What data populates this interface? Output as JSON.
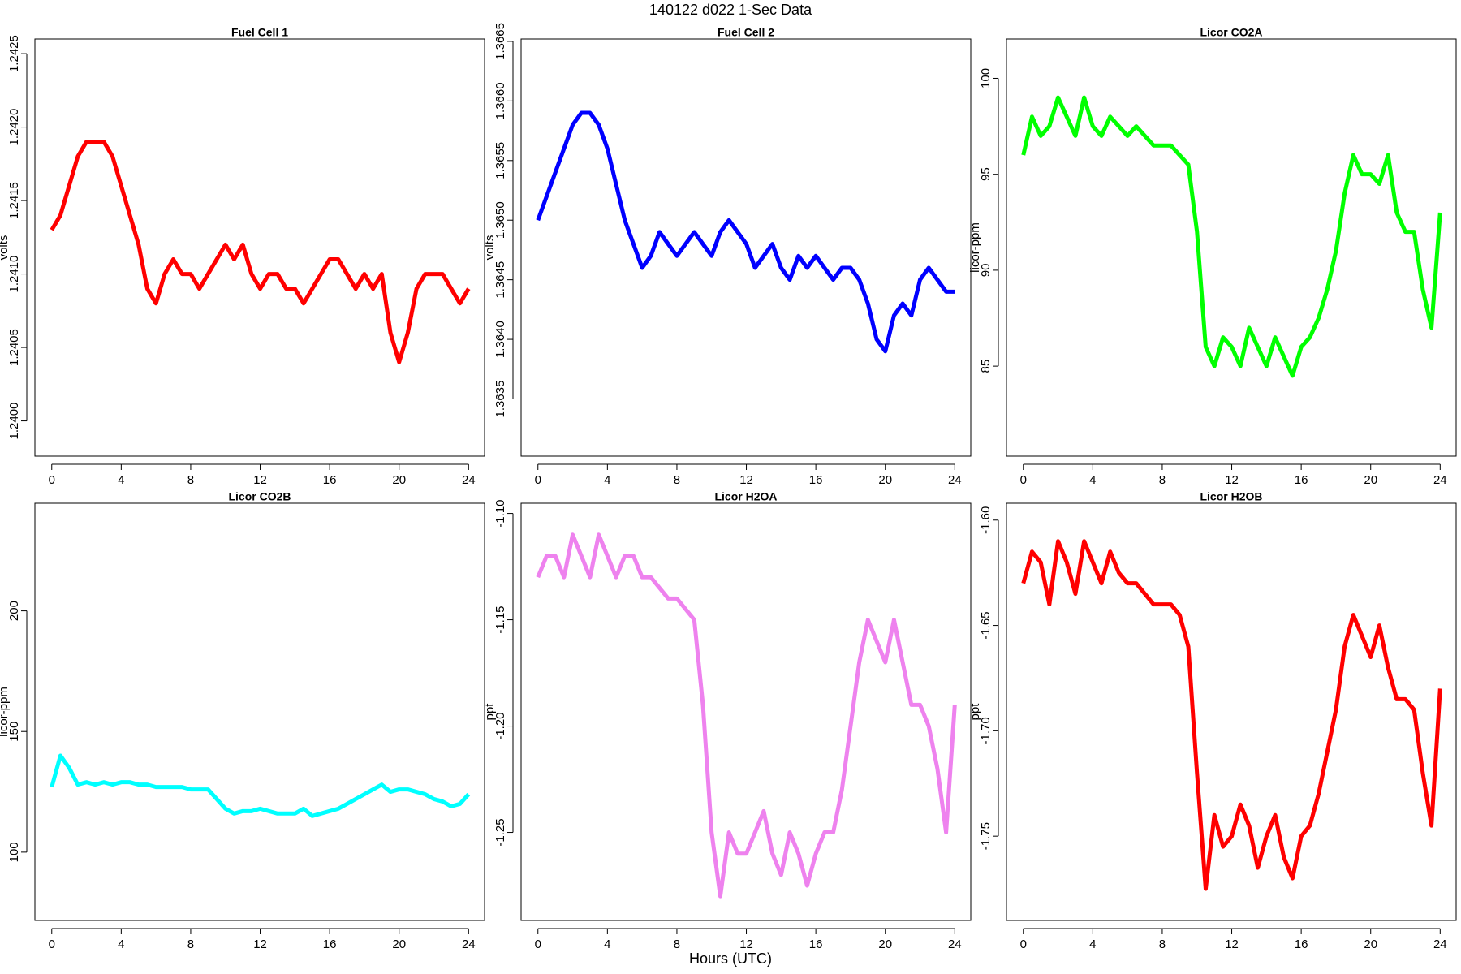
{
  "title": "140122   d022   1-Sec Data",
  "xlabel": "Hours (UTC)",
  "chart_data": [
    {
      "type": "line",
      "title": "Fuel Cell 1",
      "ylabel": "volts",
      "color": "#ff0000",
      "x": [
        0,
        0.5,
        1,
        1.5,
        2,
        2.5,
        3,
        3.5,
        4,
        4.5,
        5,
        5.5,
        6,
        6.5,
        7,
        7.5,
        8,
        8.5,
        9,
        9.5,
        10,
        10.5,
        11,
        11.5,
        12,
        12.5,
        13,
        13.5,
        14,
        14.5,
        15,
        15.5,
        16,
        16.5,
        17,
        17.5,
        18,
        18.5,
        19,
        19.5,
        20,
        20.5,
        21,
        21.5,
        22,
        22.5,
        23,
        23.5,
        24
      ],
      "values": [
        1.2413,
        1.2414,
        1.2416,
        1.2418,
        1.2419,
        1.2419,
        1.2419,
        1.2418,
        1.2416,
        1.2414,
        1.2412,
        1.2409,
        1.2408,
        1.241,
        1.2411,
        1.241,
        1.241,
        1.2409,
        1.241,
        1.2411,
        1.2412,
        1.2411,
        1.2412,
        1.241,
        1.2409,
        1.241,
        1.241,
        1.2409,
        1.2409,
        1.2408,
        1.2409,
        1.241,
        1.2411,
        1.2411,
        1.241,
        1.2409,
        1.241,
        1.2409,
        1.241,
        1.2406,
        1.2404,
        1.2406,
        1.2409,
        1.241,
        1.241,
        1.241,
        1.2409,
        1.2408,
        1.2409
      ],
      "xlim": [
        -0.97,
        24.92
      ],
      "xticks": [
        0,
        4,
        8,
        12,
        16,
        20,
        24
      ],
      "ylim": [
        1.23976,
        1.2426
      ],
      "yticks": [
        {
          "value": 1.24,
          "label": "1.2400"
        },
        1.2405,
        {
          "value": 1.241,
          "label": "1.2410"
        },
        1.2415,
        {
          "value": 1.242,
          "label": "1.2420"
        },
        1.2425
      ]
    },
    {
      "type": "line",
      "title": "Fuel Cell 2",
      "ylabel": "volts",
      "color": "#0000ff",
      "x": [
        0,
        0.5,
        1,
        1.5,
        2,
        2.5,
        3,
        3.5,
        4,
        4.5,
        5,
        5.5,
        6,
        6.5,
        7,
        7.5,
        8,
        8.5,
        9,
        9.5,
        10,
        10.5,
        11,
        11.5,
        12,
        12.5,
        13,
        13.5,
        14,
        14.5,
        15,
        15.5,
        16,
        16.5,
        17,
        17.5,
        18,
        18.5,
        19,
        19.5,
        20,
        20.5,
        21,
        21.5,
        22,
        22.5,
        23,
        23.5,
        24
      ],
      "values": [
        1.365,
        1.3652,
        1.3654,
        1.3656,
        1.3658,
        1.3659,
        1.3659,
        1.3658,
        1.3656,
        1.3653,
        1.365,
        1.3648,
        1.3646,
        1.3647,
        1.3649,
        1.3648,
        1.3647,
        1.3648,
        1.3649,
        1.3648,
        1.3647,
        1.3649,
        1.365,
        1.3649,
        1.3648,
        1.3646,
        1.3647,
        1.3648,
        1.3646,
        1.3645,
        1.3647,
        1.3646,
        1.3647,
        1.3646,
        1.3645,
        1.3646,
        1.3646,
        1.3645,
        1.3643,
        1.364,
        1.3639,
        1.3642,
        1.3643,
        1.3642,
        1.3645,
        1.3646,
        1.3645,
        1.3644,
        1.3644
      ],
      "xlim": [
        -0.97,
        24.92
      ],
      "xticks": [
        0,
        4,
        8,
        12,
        16,
        20,
        24
      ],
      "ylim": [
        1.36302,
        1.36652
      ],
      "yticks": [
        1.3635,
        {
          "value": 1.364,
          "label": "1.3640"
        },
        1.3645,
        {
          "value": 1.365,
          "label": "1.3650"
        },
        1.3655,
        {
          "value": 1.366,
          "label": "1.3660"
        },
        1.3665
      ]
    },
    {
      "type": "line",
      "title": "Licor CO2A",
      "ylabel": "licor-ppm",
      "color": "#00ff00",
      "x": [
        0,
        0.5,
        1,
        1.5,
        2,
        2.5,
        3,
        3.5,
        4,
        4.5,
        5,
        5.5,
        6,
        6.5,
        7,
        7.5,
        8,
        8.5,
        9,
        9.5,
        10,
        10.5,
        11,
        11.5,
        12,
        12.5,
        13,
        13.5,
        14,
        14.5,
        15,
        15.5,
        16,
        16.5,
        17,
        17.5,
        18,
        18.5,
        19,
        19.5,
        20,
        20.5,
        21,
        21.5,
        22,
        22.5,
        23,
        23.5,
        24
      ],
      "values": [
        96,
        98,
        97,
        97.5,
        99,
        98,
        97,
        99,
        97.5,
        97,
        98,
        97.5,
        97,
        97.5,
        97,
        96.5,
        96.5,
        96.5,
        96,
        95.5,
        92,
        86,
        85,
        86.5,
        86,
        85,
        87,
        86,
        85,
        86.5,
        85.5,
        84.5,
        86,
        86.5,
        87.5,
        89,
        91,
        94,
        96,
        95,
        95,
        94.5,
        96,
        93,
        92,
        92,
        89,
        87,
        93
      ],
      "xlim": [
        -0.97,
        24.92
      ],
      "xticks": [
        0,
        4,
        8,
        12,
        16,
        20,
        24
      ],
      "ylim": [
        80.31,
        102.05
      ],
      "yticks": [
        85,
        90,
        95,
        100
      ]
    },
    {
      "type": "line",
      "title": "Licor CO2B",
      "ylabel": "licor-ppm",
      "color": "#00ffff",
      "x": [
        0,
        0.5,
        1,
        1.5,
        2,
        2.5,
        3,
        3.5,
        4,
        4.5,
        5,
        5.5,
        6,
        6.5,
        7,
        7.5,
        8,
        8.5,
        9,
        9.5,
        10,
        10.5,
        11,
        11.5,
        12,
        12.5,
        13,
        13.5,
        14,
        14.5,
        15,
        15.5,
        16,
        16.5,
        17,
        17.5,
        18,
        18.5,
        19,
        19.5,
        20,
        20.5,
        21,
        21.5,
        22,
        22.5,
        23,
        23.5,
        24
      ],
      "values": [
        127,
        140,
        135,
        128,
        129,
        128,
        129,
        128,
        129,
        129,
        128,
        128,
        127,
        127,
        127,
        127,
        126,
        126,
        126,
        122,
        118,
        116,
        117,
        117,
        118,
        117,
        116,
        116,
        116,
        118,
        115,
        116,
        117,
        118,
        120,
        122,
        124,
        126,
        128,
        125,
        126,
        126,
        125,
        124,
        122,
        121,
        119,
        120,
        124
      ],
      "xlim": [
        -0.97,
        24.92
      ],
      "xticks": [
        0,
        4,
        8,
        12,
        16,
        20,
        24
      ],
      "ylim": [
        71.7,
        244.6
      ],
      "yticks": [
        100,
        150,
        200
      ]
    },
    {
      "type": "line",
      "title": "Licor H2OA",
      "ylabel": "ppt",
      "color": "#ee82ee",
      "x": [
        0,
        0.5,
        1,
        1.5,
        2,
        2.5,
        3,
        3.5,
        4,
        4.5,
        5,
        5.5,
        6,
        6.5,
        7,
        7.5,
        8,
        8.5,
        9,
        9.5,
        10,
        10.5,
        11,
        11.5,
        12,
        12.5,
        13,
        13.5,
        14,
        14.5,
        15,
        15.5,
        16,
        16.5,
        17,
        17.5,
        18,
        18.5,
        19,
        19.5,
        20,
        20.5,
        21,
        21.5,
        22,
        22.5,
        23,
        23.5,
        24
      ],
      "values": [
        -1.13,
        -1.12,
        -1.12,
        -1.13,
        -1.11,
        -1.12,
        -1.13,
        -1.11,
        -1.12,
        -1.13,
        -1.12,
        -1.12,
        -1.13,
        -1.13,
        -1.135,
        -1.14,
        -1.14,
        -1.145,
        -1.15,
        -1.19,
        -1.25,
        -1.28,
        -1.25,
        -1.26,
        -1.26,
        -1.25,
        -1.24,
        -1.26,
        -1.27,
        -1.25,
        -1.26,
        -1.275,
        -1.26,
        -1.25,
        -1.25,
        -1.23,
        -1.2,
        -1.17,
        -1.15,
        -1.16,
        -1.17,
        -1.15,
        -1.17,
        -1.19,
        -1.19,
        -1.2,
        -1.22,
        -1.25,
        -1.19
      ],
      "xlim": [
        -0.97,
        24.92
      ],
      "xticks": [
        0,
        4,
        8,
        12,
        16,
        20,
        24
      ],
      "ylim": [
        -1.2914,
        -1.0952
      ],
      "yticks": [
        -1.25,
        {
          "value": -1.2,
          "label": "-1.20"
        },
        -1.15,
        {
          "value": -1.1,
          "label": "-1.10"
        }
      ]
    },
    {
      "type": "line",
      "title": "Licor H2OB",
      "ylabel": "ppt",
      "color": "#ff0000",
      "x": [
        0,
        0.5,
        1,
        1.5,
        2,
        2.5,
        3,
        3.5,
        4,
        4.5,
        5,
        5.5,
        6,
        6.5,
        7,
        7.5,
        8,
        8.5,
        9,
        9.5,
        10,
        10.5,
        11,
        11.5,
        12,
        12.5,
        13,
        13.5,
        14,
        14.5,
        15,
        15.5,
        16,
        16.5,
        17,
        17.5,
        18,
        18.5,
        19,
        19.5,
        20,
        20.5,
        21,
        21.5,
        22,
        22.5,
        23,
        23.5,
        24
      ],
      "values": [
        -1.63,
        -1.615,
        -1.62,
        -1.64,
        -1.61,
        -1.62,
        -1.635,
        -1.61,
        -1.62,
        -1.63,
        -1.615,
        -1.625,
        -1.63,
        -1.63,
        -1.635,
        -1.64,
        -1.64,
        -1.64,
        -1.645,
        -1.66,
        -1.72,
        -1.775,
        -1.74,
        -1.755,
        -1.75,
        -1.735,
        -1.745,
        -1.765,
        -1.75,
        -1.74,
        -1.76,
        -1.77,
        -1.75,
        -1.745,
        -1.73,
        -1.71,
        -1.69,
        -1.66,
        -1.645,
        -1.655,
        -1.665,
        -1.65,
        -1.67,
        -1.685,
        -1.685,
        -1.69,
        -1.72,
        -1.745,
        -1.68
      ],
      "xlim": [
        -0.97,
        24.92
      ],
      "xticks": [
        0,
        4,
        8,
        12,
        16,
        20,
        24
      ],
      "ylim": [
        -1.79,
        -1.592
      ],
      "yticks": [
        -1.75,
        {
          "value": -1.7,
          "label": "-1.70"
        },
        -1.65,
        {
          "value": -1.6,
          "label": "-1.60"
        }
      ]
    }
  ]
}
